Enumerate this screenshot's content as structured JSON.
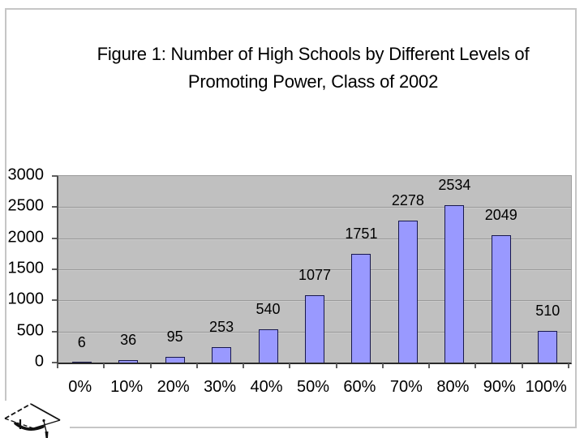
{
  "slide": {
    "title_line1": "Figure 1: Number of High Schools by Different Levels of",
    "title_line2": "Promoting Power, Class of 2002"
  },
  "chart_data": {
    "type": "bar",
    "title": "Figure 1: Number of High Schools by Different Levels of Promoting Power, Class of 2002",
    "categories": [
      "0%",
      "10%",
      "20%",
      "30%",
      "40%",
      "50%",
      "60%",
      "70%",
      "80%",
      "90%",
      "100%"
    ],
    "values": [
      6,
      36,
      95,
      253,
      540,
      1077,
      1751,
      2278,
      2534,
      2049,
      510
    ],
    "xlabel": "",
    "ylabel": "",
    "ylim": [
      0,
      3000
    ],
    "ytick_interval": 500,
    "yticks": [
      "3000",
      "2500",
      "2000",
      "1500",
      "1000",
      "500",
      "0"
    ],
    "grid": "horizontal",
    "legend_position": "none",
    "data_labels_shown": true,
    "colors": {
      "bar_fill": "#9999ff",
      "bar_border": "#17174d",
      "plot_background": "#c0c0c0",
      "gridline": "#9a9a9a",
      "text": "#000000",
      "slide_border": "#c6c6c6"
    }
  },
  "icons": {
    "logo": "graduation-cap-icon"
  }
}
